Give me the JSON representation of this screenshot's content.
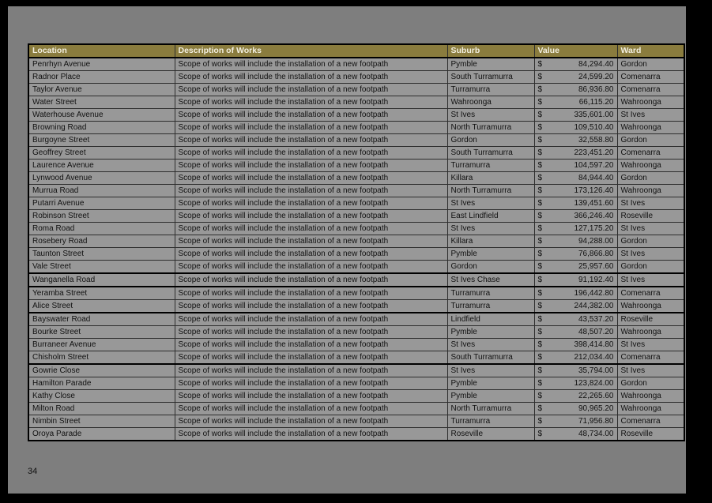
{
  "page": {
    "number": "34"
  },
  "colors": {
    "page_bg": "#7e7e7e",
    "row_bg": "#989898",
    "header_bg": "#8a7c3e",
    "header_text": "#f2efe0",
    "border": "#2e2e2e",
    "text": "#111111"
  },
  "table": {
    "columns": [
      {
        "key": "location",
        "label": "Location"
      },
      {
        "key": "description",
        "label": "Description of Works"
      },
      {
        "key": "suburb",
        "label": "Suburb"
      },
      {
        "key": "value",
        "label": "Value"
      },
      {
        "key": "ward",
        "label": "Ward"
      }
    ],
    "shared_description": "Scope of works will include the installation of a new footpath",
    "currency_symbol": "$",
    "rows": [
      {
        "location": "Penrhyn Avenue",
        "suburb": "Pymble",
        "value": "84,294.40",
        "ward": "Gordon",
        "thick_after": false
      },
      {
        "location": "Radnor Place",
        "suburb": "South Turramurra",
        "value": "24,599.20",
        "ward": "Comenarra",
        "thick_after": false
      },
      {
        "location": "Taylor Avenue",
        "suburb": "Turramurra",
        "value": "86,936.80",
        "ward": "Comenarra",
        "thick_after": false
      },
      {
        "location": "Water Street",
        "suburb": "Wahroonga",
        "value": "66,115.20",
        "ward": "Wahroonga",
        "thick_after": false
      },
      {
        "location": "Waterhouse Avenue",
        "suburb": "St Ives",
        "value": "335,601.00",
        "ward": "St Ives",
        "thick_after": false
      },
      {
        "location": "Browning Road",
        "suburb": "North Turramurra",
        "value": "109,510.40",
        "ward": "Wahroonga",
        "thick_after": false
      },
      {
        "location": "Burgoyne Street",
        "suburb": "Gordon",
        "value": "32,558.80",
        "ward": "Gordon",
        "thick_after": false
      },
      {
        "location": "Geoffrey Street",
        "suburb": "South Turramurra",
        "value": "223,451.20",
        "ward": "Comenarra",
        "thick_after": false
      },
      {
        "location": "Laurence Avenue",
        "suburb": "Turramurra",
        "value": "104,597.20",
        "ward": "Wahroonga",
        "thick_after": false
      },
      {
        "location": "Lynwood Avenue",
        "suburb": "Killara",
        "value": "84,944.40",
        "ward": "Gordon",
        "thick_after": false
      },
      {
        "location": "Murrua Road",
        "suburb": "North Turramurra",
        "value": "173,126.40",
        "ward": "Wahroonga",
        "thick_after": false
      },
      {
        "location": "Putarri Avenue",
        "suburb": "St Ives",
        "value": "139,451.60",
        "ward": "St Ives",
        "thick_after": false
      },
      {
        "location": "Robinson Street",
        "suburb": "East Lindfield",
        "value": "366,246.40",
        "ward": "Roseville",
        "thick_after": false
      },
      {
        "location": "Roma Road",
        "suburb": "St Ives",
        "value": "127,175.20",
        "ward": "St Ives",
        "thick_after": false
      },
      {
        "location": "Rosebery Road",
        "suburb": "Killara",
        "value": "94,288.00",
        "ward": "Gordon",
        "thick_after": false
      },
      {
        "location": "Taunton Street",
        "suburb": "Pymble",
        "value": "76,866.80",
        "ward": "St Ives",
        "thick_after": false
      },
      {
        "location": "Vale Street",
        "suburb": "Gordon",
        "value": "25,957.60",
        "ward": "Gordon",
        "thick_after": true
      },
      {
        "location": "Wanganella Road",
        "suburb": "St Ives Chase",
        "value": "91,192.40",
        "ward": "St Ives",
        "thick_after": true
      },
      {
        "location": "Yeramba Street",
        "suburb": "Turramurra",
        "value": "196,442.80",
        "ward": "Comenarra",
        "thick_after": false
      },
      {
        "location": "Alice Street",
        "suburb": "Turramurra",
        "value": "244,382.00",
        "ward": "Wahroonga",
        "thick_after": true
      },
      {
        "location": "Bayswater Road",
        "suburb": "Lindfield",
        "value": "43,537.20",
        "ward": "Roseville",
        "thick_after": false
      },
      {
        "location": "Bourke Street",
        "suburb": "Pymble",
        "value": "48,507.20",
        "ward": "Wahroonga",
        "thick_after": false
      },
      {
        "location": "Burraneer Avenue",
        "suburb": "St Ives",
        "value": "398,414.80",
        "ward": "St Ives",
        "thick_after": false
      },
      {
        "location": "Chisholm Street",
        "suburb": "South Turramurra",
        "value": "212,034.40",
        "ward": "Comenarra",
        "thick_after": true
      },
      {
        "location": "Gowrie Close",
        "suburb": "St Ives",
        "value": "35,794.00",
        "ward": "St Ives",
        "thick_after": false
      },
      {
        "location": "Hamilton Parade",
        "suburb": "Pymble",
        "value": "123,824.00",
        "ward": "Gordon",
        "thick_after": false
      },
      {
        "location": "Kathy Close",
        "suburb": "Pymble",
        "value": "22,265.60",
        "ward": "Wahroonga",
        "thick_after": false
      },
      {
        "location": "Milton Road",
        "suburb": "North Turramurra",
        "value": "90,965.20",
        "ward": "Wahroonga",
        "thick_after": false
      },
      {
        "location": "Nimbin Street",
        "suburb": "Turramurra",
        "value": "71,956.80",
        "ward": "Comenarra",
        "thick_after": false
      },
      {
        "location": "Oroya Parade",
        "suburb": "Roseville",
        "value": "48,734.00",
        "ward": "Roseville",
        "thick_after": false
      }
    ]
  }
}
